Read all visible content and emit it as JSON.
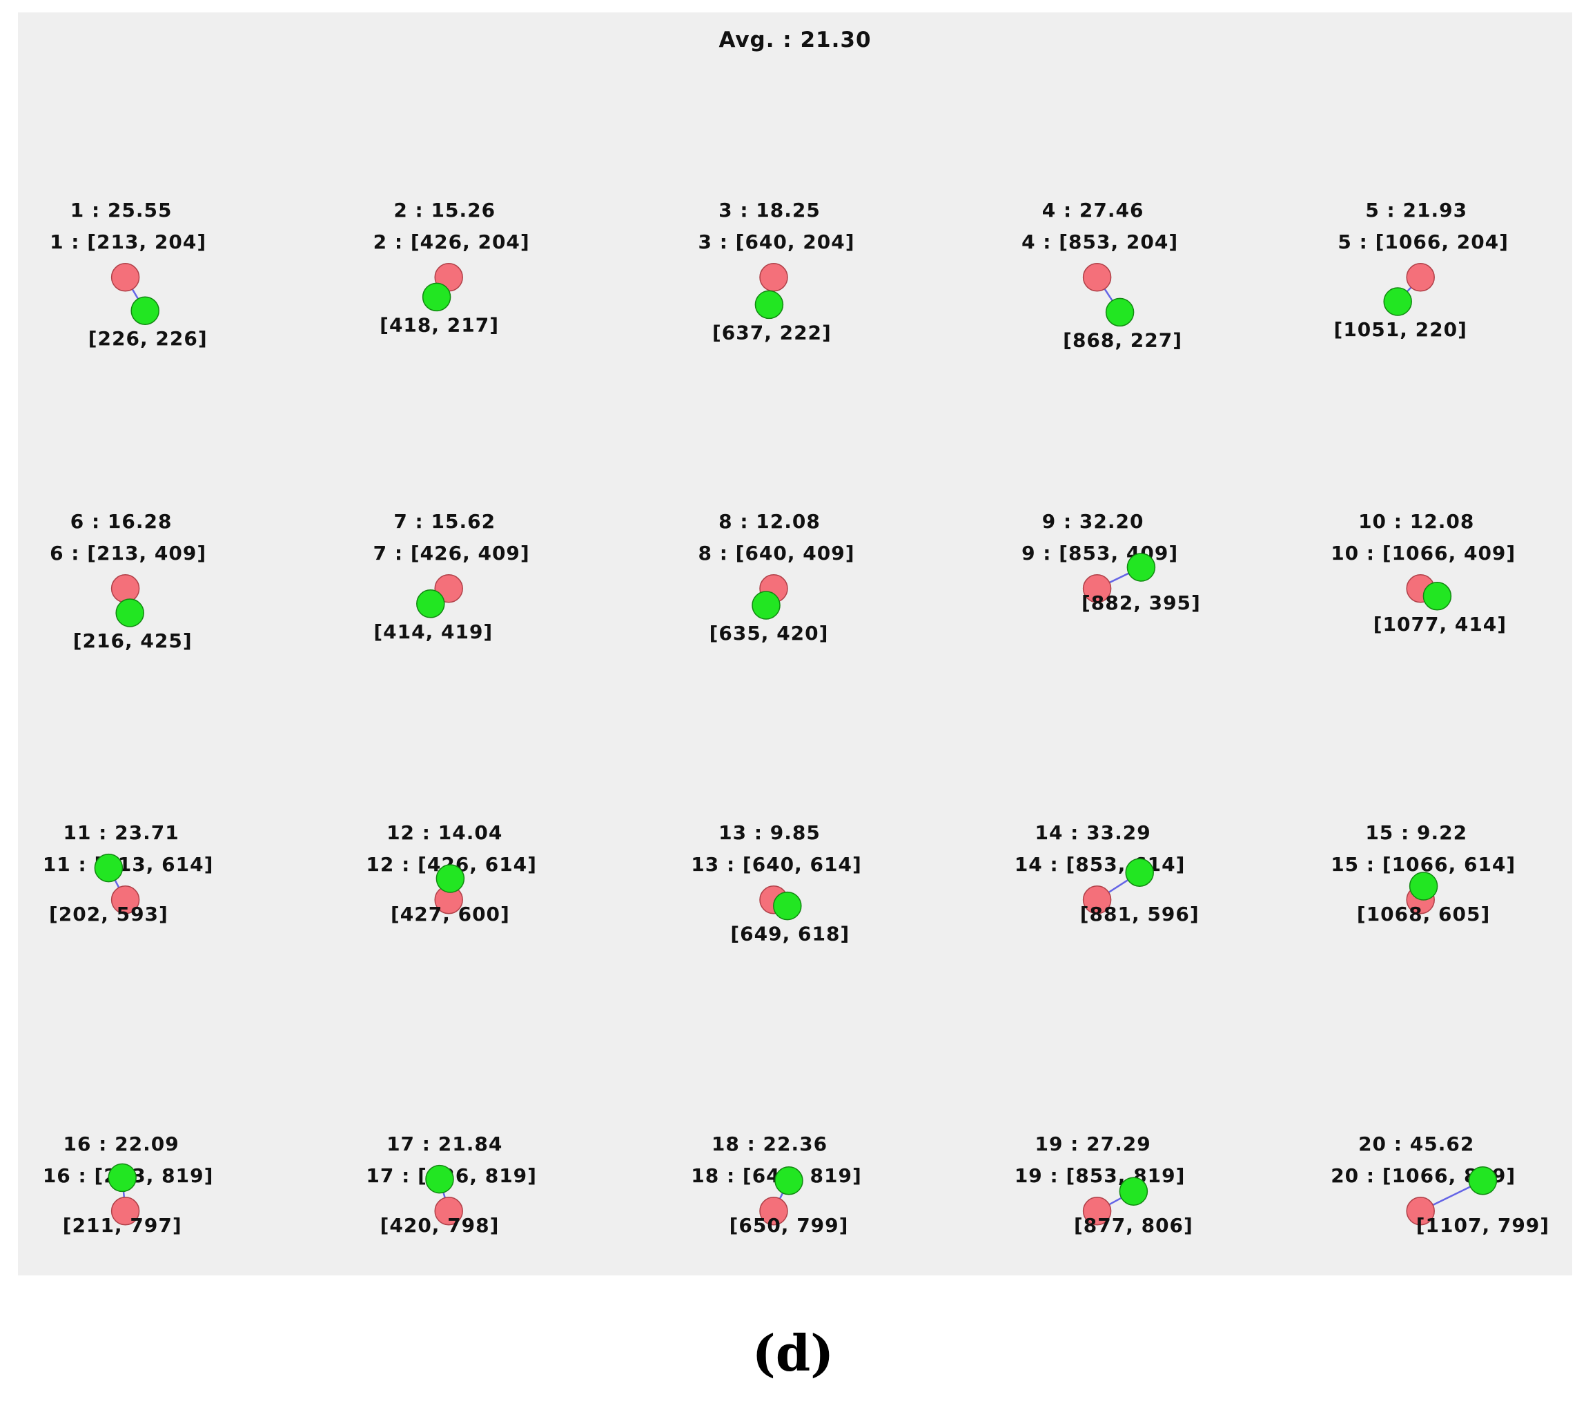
{
  "header": {
    "avg_text": "Avg. : 21.30"
  },
  "caption": "(d)",
  "legend_colors": {
    "target": "#f4707a",
    "detected": "#22e622",
    "connector": "#6464e6"
  },
  "points": [
    {
      "error_label": "1 : 25.55",
      "target_label": "1 : [213, 204]",
      "detected_label": "[226, 226]",
      "target": [
        213,
        204
      ],
      "detected": [
        226,
        226
      ]
    },
    {
      "error_label": "2 : 15.26",
      "target_label": "2 : [426, 204]",
      "detected_label": "[418, 217]",
      "target": [
        426,
        204
      ],
      "detected": [
        418,
        217
      ]
    },
    {
      "error_label": "3 : 18.25",
      "target_label": "3 : [640, 204]",
      "detected_label": "[637, 222]",
      "target": [
        640,
        204
      ],
      "detected": [
        637,
        222
      ]
    },
    {
      "error_label": "4 : 27.46",
      "target_label": "4 : [853, 204]",
      "detected_label": "[868, 227]",
      "target": [
        853,
        204
      ],
      "detected": [
        868,
        227
      ]
    },
    {
      "error_label": "5 : 21.93",
      "target_label": "5 : [1066, 204]",
      "detected_label": "[1051, 220]",
      "target": [
        1066,
        204
      ],
      "detected": [
        1051,
        220
      ]
    },
    {
      "error_label": "6 : 16.28",
      "target_label": "6 : [213, 409]",
      "detected_label": "[216, 425]",
      "target": [
        213,
        409
      ],
      "detected": [
        216,
        425
      ]
    },
    {
      "error_label": "7 : 15.62",
      "target_label": "7 : [426, 409]",
      "detected_label": "[414, 419]",
      "target": [
        426,
        409
      ],
      "detected": [
        414,
        419
      ]
    },
    {
      "error_label": "8 : 12.08",
      "target_label": "8 : [640, 409]",
      "detected_label": "[635, 420]",
      "target": [
        640,
        409
      ],
      "detected": [
        635,
        420
      ]
    },
    {
      "error_label": "9 : 32.20",
      "target_label": "9 : [853, 409]",
      "detected_label": "[882, 395]",
      "target": [
        853,
        409
      ],
      "detected": [
        882,
        395
      ]
    },
    {
      "error_label": "10 : 12.08",
      "target_label": "10 : [1066, 409]",
      "detected_label": "[1077, 414]",
      "target": [
        1066,
        409
      ],
      "detected": [
        1077,
        414
      ]
    },
    {
      "error_label": "11 : 23.71",
      "target_label": "11 : [213, 614]",
      "detected_label": "[202, 593]",
      "target": [
        213,
        614
      ],
      "detected": [
        202,
        593
      ]
    },
    {
      "error_label": "12 : 14.04",
      "target_label": "12 : [426, 614]",
      "detected_label": "[427, 600]",
      "target": [
        426,
        614
      ],
      "detected": [
        427,
        600
      ]
    },
    {
      "error_label": "13 : 9.85",
      "target_label": "13 : [640, 614]",
      "detected_label": "[649, 618]",
      "target": [
        640,
        614
      ],
      "detected": [
        649,
        618
      ]
    },
    {
      "error_label": "14 : 33.29",
      "target_label": "14 : [853, 614]",
      "detected_label": "[881, 596]",
      "target": [
        853,
        614
      ],
      "detected": [
        881,
        596
      ]
    },
    {
      "error_label": "15 : 9.22",
      "target_label": "15 : [1066, 614]",
      "detected_label": "[1068, 605]",
      "target": [
        1066,
        614
      ],
      "detected": [
        1068,
        605
      ]
    },
    {
      "error_label": "16 : 22.09",
      "target_label": "16 : [213, 819]",
      "detected_label": "[211, 797]",
      "target": [
        213,
        819
      ],
      "detected": [
        211,
        797
      ]
    },
    {
      "error_label": "17 : 21.84",
      "target_label": "17 : [426, 819]",
      "detected_label": "[420, 798]",
      "target": [
        426,
        819
      ],
      "detected": [
        420,
        798
      ]
    },
    {
      "error_label": "18 : 22.36",
      "target_label": "18 : [640, 819]",
      "detected_label": "[650, 799]",
      "target": [
        640,
        819
      ],
      "detected": [
        650,
        799
      ]
    },
    {
      "error_label": "19 : 27.29",
      "target_label": "19 : [853, 819]",
      "detected_label": "[877, 806]",
      "target": [
        853,
        819
      ],
      "detected": [
        877,
        806
      ]
    },
    {
      "error_label": "20 : 45.62",
      "target_label": "20 : [1066, 819]",
      "detected_label": "[1107, 799]",
      "target": [
        1066,
        819
      ],
      "detected": [
        1107,
        799
      ]
    }
  ]
}
